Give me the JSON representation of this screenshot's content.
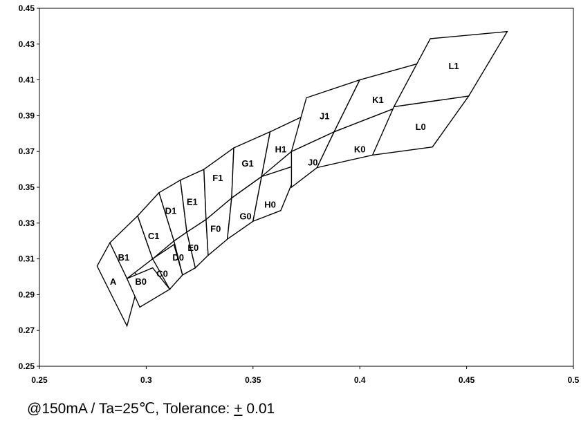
{
  "chart_data": {
    "type": "scatter",
    "title": "",
    "xlabel": "",
    "ylabel": "",
    "xlim": [
      0.25,
      0.5
    ],
    "ylim": [
      0.25,
      0.45
    ],
    "x_ticks": [
      "0.25",
      "0.3",
      "0.35",
      "0.4",
      "0.45",
      "0.5"
    ],
    "y_ticks": [
      "0.25",
      "0.27",
      "0.29",
      "0.31",
      "0.33",
      "0.35",
      "0.37",
      "0.39",
      "0.41",
      "0.43",
      "0.45"
    ],
    "grid": false,
    "legend": "none",
    "bins": [
      {
        "name": "A",
        "label_at": [
          0.2845,
          0.2975
        ],
        "vertices": [
          [
            0.277,
            0.306
          ],
          [
            0.283,
            0.319
          ],
          [
            0.297,
            0.299
          ],
          [
            0.291,
            0.2725
          ]
        ]
      },
      {
        "name": "B0",
        "label_at": [
          0.2975,
          0.2975
        ],
        "vertices": [
          [
            0.291,
            0.299
          ],
          [
            0.303,
            0.305
          ],
          [
            0.311,
            0.293
          ],
          [
            0.297,
            0.283
          ]
        ]
      },
      {
        "name": "B1",
        "label_at": [
          0.2895,
          0.311
        ],
        "vertices": [
          [
            0.283,
            0.319
          ],
          [
            0.296,
            0.334
          ],
          [
            0.303,
            0.31
          ],
          [
            0.291,
            0.299
          ]
        ]
      },
      {
        "name": "C0",
        "label_at": [
          0.3075,
          0.302
        ],
        "vertices": [
          [
            0.303,
            0.31
          ],
          [
            0.313,
            0.318
          ],
          [
            0.317,
            0.301
          ],
          [
            0.311,
            0.293
          ]
        ]
      },
      {
        "name": "C1",
        "label_at": [
          0.3035,
          0.323
        ],
        "vertices": [
          [
            0.296,
            0.334
          ],
          [
            0.306,
            0.347
          ],
          [
            0.313,
            0.32
          ],
          [
            0.303,
            0.31
          ]
        ]
      },
      {
        "name": "D0",
        "label_at": [
          0.315,
          0.311
        ],
        "vertices": [
          [
            0.313,
            0.32
          ],
          [
            0.319,
            0.325
          ],
          [
            0.323,
            0.305
          ],
          [
            0.317,
            0.301
          ]
        ]
      },
      {
        "name": "D1",
        "label_at": [
          0.3115,
          0.337
        ],
        "vertices": [
          [
            0.306,
            0.347
          ],
          [
            0.316,
            0.354
          ],
          [
            0.319,
            0.325
          ],
          [
            0.313,
            0.32
          ]
        ]
      },
      {
        "name": "E0",
        "label_at": [
          0.322,
          0.3165
        ],
        "vertices": [
          [
            0.319,
            0.325
          ],
          [
            0.328,
            0.332
          ],
          [
            0.329,
            0.312
          ],
          [
            0.323,
            0.305
          ]
        ]
      },
      {
        "name": "E1",
        "label_at": [
          0.3215,
          0.342
        ],
        "vertices": [
          [
            0.316,
            0.354
          ],
          [
            0.327,
            0.36
          ],
          [
            0.328,
            0.332
          ],
          [
            0.319,
            0.325
          ]
        ]
      },
      {
        "name": "F0",
        "label_at": [
          0.3325,
          0.327
        ],
        "vertices": [
          [
            0.328,
            0.332
          ],
          [
            0.34,
            0.344
          ],
          [
            0.338,
            0.321
          ],
          [
            0.329,
            0.312
          ]
        ]
      },
      {
        "name": "F1",
        "label_at": [
          0.3335,
          0.3555
        ],
        "vertices": [
          [
            0.327,
            0.36
          ],
          [
            0.341,
            0.372
          ],
          [
            0.34,
            0.344
          ],
          [
            0.328,
            0.332
          ]
        ]
      },
      {
        "name": "G0",
        "label_at": [
          0.3465,
          0.334
        ],
        "vertices": [
          [
            0.34,
            0.344
          ],
          [
            0.354,
            0.356
          ],
          [
            0.35,
            0.331
          ],
          [
            0.338,
            0.321
          ]
        ]
      },
      {
        "name": "G1",
        "label_at": [
          0.3475,
          0.3635
        ],
        "vertices": [
          [
            0.341,
            0.372
          ],
          [
            0.358,
            0.381
          ],
          [
            0.354,
            0.356
          ],
          [
            0.34,
            0.344
          ]
        ]
      },
      {
        "name": "H0",
        "label_at": [
          0.358,
          0.3405
        ],
        "vertices": [
          [
            0.354,
            0.356
          ],
          [
            0.372,
            0.363
          ],
          [
            0.363,
            0.337
          ],
          [
            0.35,
            0.331
          ]
        ]
      },
      {
        "name": "H1",
        "label_at": [
          0.363,
          0.3715
        ],
        "vertices": [
          [
            0.358,
            0.381
          ],
          [
            0.374,
            0.39
          ],
          [
            0.368,
            0.37
          ],
          [
            0.354,
            0.356
          ]
        ]
      },
      {
        "name": "J0",
        "label_at": [
          0.378,
          0.364
        ],
        "vertices": [
          [
            0.368,
            0.37
          ],
          [
            0.388,
            0.381
          ],
          [
            0.38,
            0.361
          ],
          [
            0.368,
            0.35
          ]
        ]
      },
      {
        "name": "J1",
        "label_at": [
          0.3835,
          0.39
        ],
        "vertices": [
          [
            0.375,
            0.4
          ],
          [
            0.4,
            0.41
          ],
          [
            0.388,
            0.381
          ],
          [
            0.368,
            0.37
          ]
        ]
      },
      {
        "name": "K0",
        "label_at": [
          0.4,
          0.3715
        ],
        "vertices": [
          [
            0.388,
            0.381
          ],
          [
            0.416,
            0.394
          ],
          [
            0.406,
            0.368
          ],
          [
            0.38,
            0.361
          ]
        ]
      },
      {
        "name": "K1",
        "label_at": [
          0.4085,
          0.399
        ],
        "vertices": [
          [
            0.4,
            0.41
          ],
          [
            0.43,
            0.42
          ],
          [
            0.416,
            0.394
          ],
          [
            0.388,
            0.381
          ]
        ]
      },
      {
        "name": "L0",
        "label_at": [
          0.4285,
          0.384
        ],
        "vertices": [
          [
            0.416,
            0.395
          ],
          [
            0.451,
            0.401
          ],
          [
            0.434,
            0.3725
          ],
          [
            0.406,
            0.368
          ]
        ]
      },
      {
        "name": "L1",
        "label_at": [
          0.444,
          0.418
        ],
        "vertices": [
          [
            0.433,
            0.433
          ],
          [
            0.469,
            0.437
          ],
          [
            0.451,
            0.401
          ],
          [
            0.416,
            0.395
          ]
        ]
      }
    ]
  },
  "footnote": {
    "prefix": "@150mA / Ta=25℃, Tolerance: ",
    "plusminus": "+",
    "suffix": " 0.01"
  }
}
